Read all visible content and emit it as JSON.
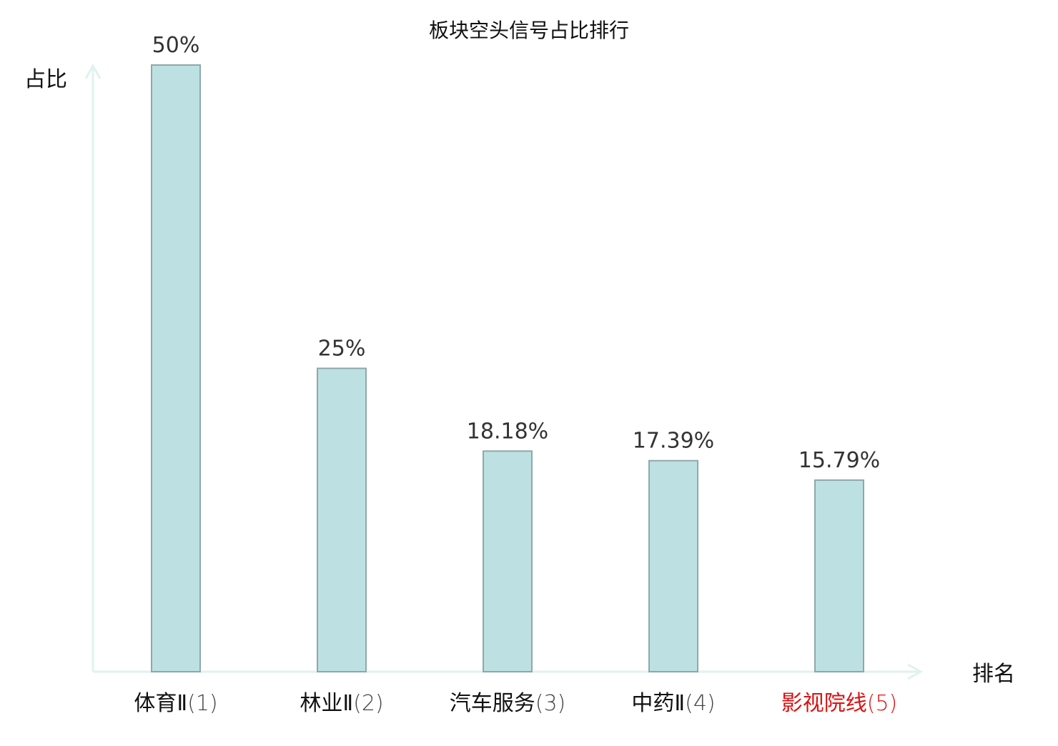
{
  "chart_data": {
    "type": "bar",
    "title": "板块空头信号占比排行",
    "ylabel": "占比",
    "xlabel": "排名",
    "categories": [
      {
        "name": "体育Ⅱ",
        "rank": "(1)",
        "highlight": false
      },
      {
        "name": "林业Ⅱ",
        "rank": "(2)",
        "highlight": false
      },
      {
        "name": "汽车服务",
        "rank": "(3)",
        "highlight": false
      },
      {
        "name": "中药Ⅱ",
        "rank": "(4)",
        "highlight": false
      },
      {
        "name": "影视院线",
        "rank": "(5)",
        "highlight": true
      }
    ],
    "values": [
      50,
      25,
      18.18,
      17.39,
      15.79
    ],
    "value_labels": [
      "50%",
      "25%",
      "18.18%",
      "17.39%",
      "15.79%"
    ],
    "ylim": [
      0,
      50
    ],
    "grid": false,
    "legend": "none",
    "colors": {
      "bar_fill": "#bde1e3",
      "bar_stroke": "#8fa8a9",
      "axis": "#e0f2ef",
      "text": "#333333",
      "highlight_text": "#dd1111"
    }
  }
}
